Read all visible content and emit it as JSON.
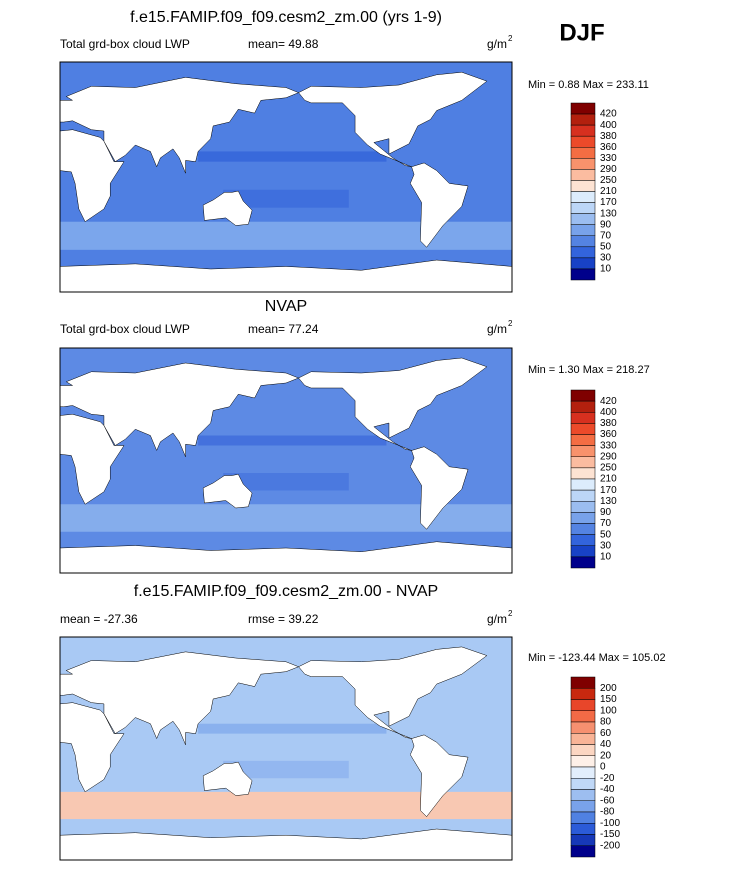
{
  "header": {
    "season": "DJF"
  },
  "panels": [
    {
      "title": "f.e15.FAMIP.f09_f09.cesm2_zm.00 (yrs 1-9)",
      "left": "Total grd-box cloud LWP",
      "stat": "mean=  49.88",
      "units": "g/m",
      "units_power": "2",
      "range": "Min =   0.88 Max = 233.11",
      "colorbar": {
        "levels": [
          420,
          400,
          380,
          360,
          330,
          290,
          250,
          210,
          170,
          130,
          90,
          70,
          50,
          30,
          10
        ],
        "colors": [
          "#7f0000",
          "#b3200e",
          "#d7301f",
          "#ec4a2a",
          "#f46d43",
          "#f8926c",
          "#fbbca0",
          "#fde3d3",
          "#dcecfc",
          "#bcd6f7",
          "#9bbdf0",
          "#78a2ea",
          "#5483e2",
          "#3364dc",
          "#1842c6",
          "#00008b"
        ]
      }
    },
    {
      "title": "NVAP",
      "left": "Total grd-box cloud LWP",
      "stat": "mean=  77.24",
      "units": "g/m",
      "units_power": "2",
      "range": "Min =   1.30 Max = 218.27",
      "colorbar": {
        "levels": [
          420,
          400,
          380,
          360,
          330,
          290,
          250,
          210,
          170,
          130,
          90,
          70,
          50,
          30,
          10
        ],
        "colors": [
          "#7f0000",
          "#b3200e",
          "#d7301f",
          "#ec4a2a",
          "#f46d43",
          "#f8926c",
          "#fbbca0",
          "#fde3d3",
          "#dcecfc",
          "#bcd6f7",
          "#9bbdf0",
          "#78a2ea",
          "#5483e2",
          "#3364dc",
          "#1842c6",
          "#00008b"
        ]
      }
    },
    {
      "title": "f.e15.FAMIP.f09_f09.cesm2_zm.00 - NVAP",
      "left": "mean = -27.36",
      "stat": "rmse =  39.22",
      "units": "g/m",
      "units_power": "2",
      "range": "Min = -123.44 Max = 105.02",
      "colorbar": {
        "levels": [
          200,
          150,
          100,
          80,
          60,
          40,
          20,
          0,
          -20,
          -40,
          -60,
          -80,
          -100,
          -150,
          -200
        ],
        "colors": [
          "#7f0000",
          "#c8280f",
          "#e8462a",
          "#f26a46",
          "#f69070",
          "#f9b497",
          "#fcd6c2",
          "#fef0e8",
          "#e2eefc",
          "#c0d8f7",
          "#9dbef0",
          "#79a2ea",
          "#5081e2",
          "#2b5bd8",
          "#1638b8",
          "#00008b"
        ]
      }
    }
  ]
}
